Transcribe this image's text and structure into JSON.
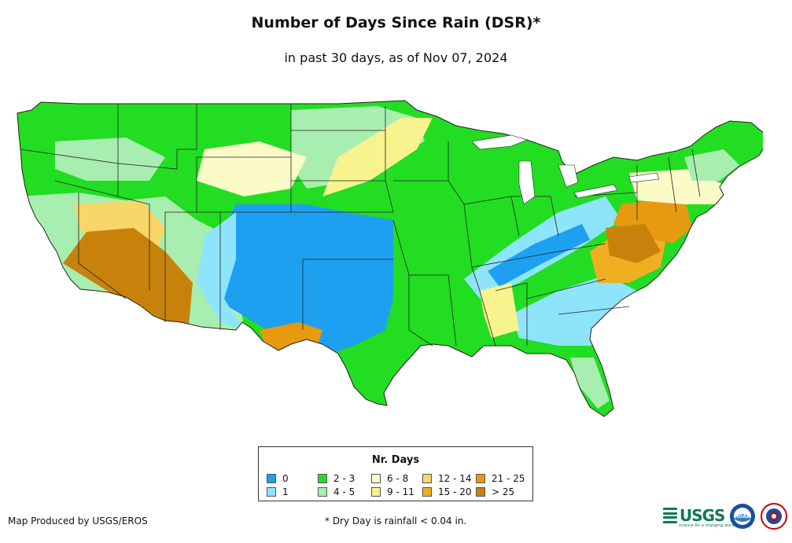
{
  "title": "Number of Days Since Rain (DSR)*",
  "subtitle": "in past 30 days, as of Nov 07, 2024",
  "legend": {
    "title": "Nr. Days",
    "items": [
      {
        "label": "0",
        "color": "#1ea0f0"
      },
      {
        "label": "1",
        "color": "#8ee4fa"
      },
      {
        "label": "2 - 3",
        "color": "#22dd22"
      },
      {
        "label": "4 - 5",
        "color": "#a8eeb0"
      },
      {
        "label": "6 - 8",
        "color": "#fbfbc8"
      },
      {
        "label": "9 - 11",
        "color": "#f7f38e"
      },
      {
        "label": "12 - 14",
        "color": "#f8d66a"
      },
      {
        "label": "15 - 20",
        "color": "#f0ae22"
      },
      {
        "label": "21 - 25",
        "color": "#e59a10"
      },
      {
        "label": "> 25",
        "color": "#c8820c"
      }
    ]
  },
  "credit": "Map Produced by USGS/EROS",
  "footnote": "* Dry Day is rainfall < 0.04 in.",
  "logos": {
    "usgs": "USGS",
    "usgs_tagline": "science for a changing world",
    "noaa": "NOAA",
    "nws": "NATIONAL WEATHER SERVICE"
  },
  "map": {
    "region": "Contiguous United States"
  }
}
